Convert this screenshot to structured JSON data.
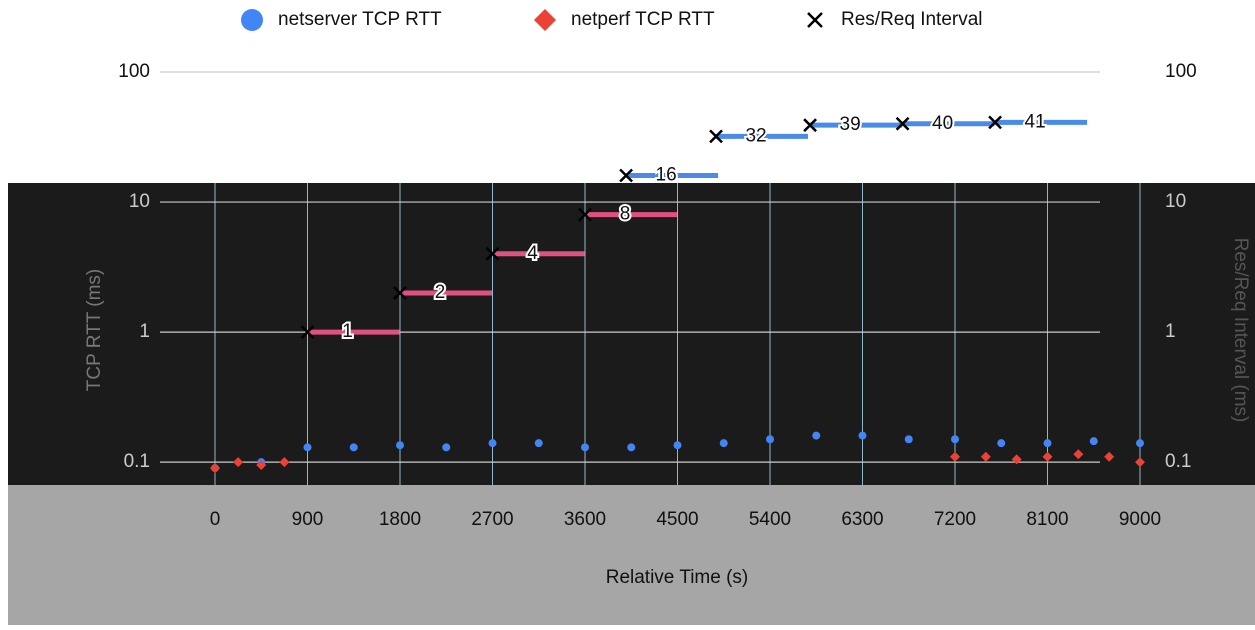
{
  "chart_data": {
    "type": "scatter",
    "xlabel": "Relative Time (s)",
    "ylabel": "TCP RTT (ms)",
    "y2label": "Res/Req Interval (ms)",
    "xlim": [
      0,
      9000
    ],
    "xticks": [
      0,
      900,
      1800,
      2700,
      3600,
      4500,
      5400,
      6300,
      7200,
      8100,
      9000
    ],
    "ylim": [
      0.06,
      100
    ],
    "yticks": [
      0.1,
      1,
      10,
      100
    ],
    "y2lim": [
      0.06,
      100
    ],
    "y2ticks": [
      0.1,
      1,
      10,
      100
    ],
    "log_scale": true,
    "grid": true,
    "legend": "top",
    "series": [
      {
        "name": "netserver TCP RTT",
        "color": "#4285f4",
        "marker": "circle",
        "x": [
          0,
          450,
          900,
          1350,
          1800,
          2250,
          2700,
          3150,
          3600,
          4050,
          4500,
          4950,
          5400,
          5850,
          6300,
          6750,
          7200,
          7650,
          8100,
          8550,
          9000
        ],
        "values": [
          0.09,
          0.1,
          0.13,
          0.13,
          0.135,
          0.13,
          0.14,
          0.14,
          0.13,
          0.13,
          0.135,
          0.14,
          0.15,
          0.16,
          0.16,
          0.15,
          0.15,
          0.14,
          0.14,
          0.145,
          0.14
        ]
      },
      {
        "name": "netperf TCP RTT",
        "color": "#ea4335",
        "marker": "diamond",
        "x": [
          0,
          225,
          450,
          675,
          7200,
          7500,
          7800,
          8100,
          8400,
          8700,
          9000
        ],
        "values": [
          0.09,
          0.1,
          0.095,
          0.1,
          0.11,
          0.11,
          0.105,
          0.11,
          0.115,
          0.11,
          0.1
        ]
      },
      {
        "name": "Res/Req Interval",
        "color": "#000000",
        "marker": "x",
        "axis": "y2",
        "x": [
          900,
          1800,
          2700,
          3600,
          4000,
          4875,
          5790,
          6690,
          7590
        ],
        "values": [
          1,
          2,
          4,
          8,
          16,
          32,
          39,
          40,
          41
        ]
      }
    ]
  }
}
